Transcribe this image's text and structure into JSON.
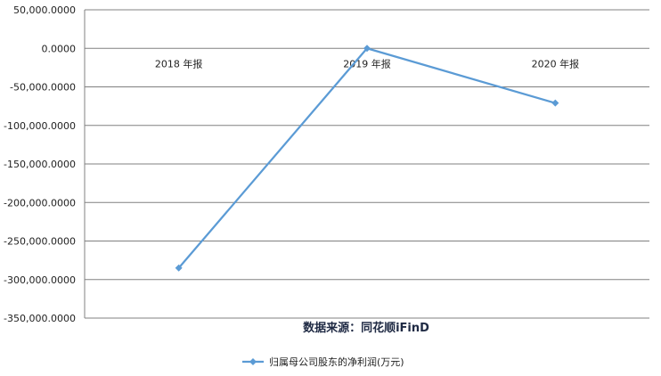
{
  "chart_data": {
    "type": "line",
    "categories": [
      "2018 年报",
      "2019 年报",
      "2020 年报"
    ],
    "series": [
      {
        "name": "归属母公司股东的净利润(万元)",
        "values": [
          -285000,
          0,
          -71000
        ],
        "color": "#5b9bd5"
      }
    ],
    "y_ticks": [
      "50,000.0000",
      "0.0000",
      "-50,000.0000",
      "-100,000.0000",
      "-150,000.0000",
      "-200,000.0000",
      "-250,000.0000",
      "-300,000.0000",
      "-350,000.0000"
    ],
    "ylim": [
      -350000,
      50000
    ],
    "grid": true,
    "legend_position": "bottom",
    "source_text": "数据来源：同花顺iFinD",
    "colors": {
      "line": "#5b9bd5",
      "grid": "#808080",
      "axis": "#808080",
      "source": "#1f2a44"
    }
  }
}
